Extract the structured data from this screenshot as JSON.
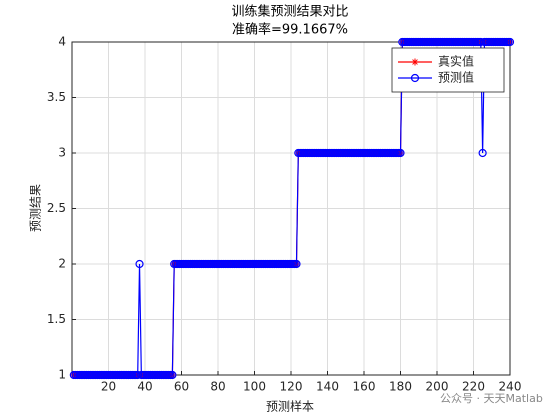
{
  "chart_data": {
    "type": "line",
    "title": "训练集预测结果对比",
    "subtitle": "准确率=99.1667%",
    "x_label": "预测样本",
    "y_label": "预测结果",
    "watermark": "公众号 · 天天Matlab",
    "xlim": [
      0,
      240
    ],
    "xticks": [
      20,
      40,
      60,
      80,
      100,
      120,
      140,
      160,
      180,
      200,
      220,
      240
    ],
    "ylim": [
      1,
      4
    ],
    "yticks": [
      1,
      1.5,
      2,
      2.5,
      3,
      3.5,
      4
    ],
    "grid": true,
    "legend": "northeast",
    "x": [
      1,
      2,
      3,
      4,
      5,
      6,
      7,
      8,
      9,
      10,
      11,
      12,
      13,
      14,
      15,
      16,
      17,
      18,
      19,
      20,
      21,
      22,
      23,
      24,
      25,
      26,
      27,
      28,
      29,
      30,
      31,
      32,
      33,
      34,
      35,
      36,
      37,
      38,
      39,
      40,
      41,
      42,
      43,
      44,
      45,
      46,
      47,
      48,
      49,
      50,
      51,
      52,
      53,
      54,
      55,
      56,
      57,
      58,
      59,
      60,
      61,
      62,
      63,
      64,
      65,
      66,
      67,
      68,
      69,
      70,
      71,
      72,
      73,
      74,
      75,
      76,
      77,
      78,
      79,
      80,
      81,
      82,
      83,
      84,
      85,
      86,
      87,
      88,
      89,
      90,
      91,
      92,
      93,
      94,
      95,
      96,
      97,
      98,
      99,
      100,
      101,
      102,
      103,
      104,
      105,
      106,
      107,
      108,
      109,
      110,
      111,
      112,
      113,
      114,
      115,
      116,
      117,
      118,
      119,
      120,
      121,
      122,
      123,
      124,
      125,
      126,
      127,
      128,
      129,
      130,
      131,
      132,
      133,
      134,
      135,
      136,
      137,
      138,
      139,
      140,
      141,
      142,
      143,
      144,
      145,
      146,
      147,
      148,
      149,
      150,
      151,
      152,
      153,
      154,
      155,
      156,
      157,
      158,
      159,
      160,
      161,
      162,
      163,
      164,
      165,
      166,
      167,
      168,
      169,
      170,
      171,
      172,
      173,
      174,
      175,
      176,
      177,
      178,
      179,
      180,
      181,
      182,
      183,
      184,
      185,
      186,
      187,
      188,
      189,
      190,
      191,
      192,
      193,
      194,
      195,
      196,
      197,
      198,
      199,
      200,
      201,
      202,
      203,
      204,
      205,
      206,
      207,
      208,
      209,
      210,
      211,
      212,
      213,
      214,
      215,
      216,
      217,
      218,
      219,
      220,
      221,
      222,
      223,
      224,
      225,
      226,
      227,
      228,
      229,
      230,
      231,
      232,
      233,
      234,
      235,
      236,
      237,
      238,
      239,
      240
    ],
    "series": [
      {
        "name": "真实值",
        "color": "#ff0000",
        "marker": "star",
        "values": [
          1,
          1,
          1,
          1,
          1,
          1,
          1,
          1,
          1,
          1,
          1,
          1,
          1,
          1,
          1,
          1,
          1,
          1,
          1,
          1,
          1,
          1,
          1,
          1,
          1,
          1,
          1,
          1,
          1,
          1,
          1,
          1,
          1,
          1,
          1,
          1,
          1,
          1,
          1,
          1,
          1,
          1,
          1,
          1,
          1,
          1,
          1,
          1,
          1,
          1,
          1,
          1,
          1,
          1,
          1,
          2,
          2,
          2,
          2,
          2,
          2,
          2,
          2,
          2,
          2,
          2,
          2,
          2,
          2,
          2,
          2,
          2,
          2,
          2,
          2,
          2,
          2,
          2,
          2,
          2,
          2,
          2,
          2,
          2,
          2,
          2,
          2,
          2,
          2,
          2,
          2,
          2,
          2,
          2,
          2,
          2,
          2,
          2,
          2,
          2,
          2,
          2,
          2,
          2,
          2,
          2,
          2,
          2,
          2,
          2,
          2,
          2,
          2,
          2,
          2,
          2,
          2,
          2,
          2,
          2,
          2,
          2,
          2,
          3,
          3,
          3,
          3,
          3,
          3,
          3,
          3,
          3,
          3,
          3,
          3,
          3,
          3,
          3,
          3,
          3,
          3,
          3,
          3,
          3,
          3,
          3,
          3,
          3,
          3,
          3,
          3,
          3,
          3,
          3,
          3,
          3,
          3,
          3,
          3,
          3,
          3,
          3,
          3,
          3,
          3,
          3,
          3,
          3,
          3,
          3,
          3,
          3,
          3,
          3,
          3,
          3,
          3,
          3,
          3,
          3,
          4,
          4,
          4,
          4,
          4,
          4,
          4,
          4,
          4,
          4,
          4,
          4,
          4,
          4,
          4,
          4,
          4,
          4,
          4,
          4,
          4,
          4,
          4,
          4,
          4,
          4,
          4,
          4,
          4,
          4,
          4,
          4,
          4,
          4,
          4,
          4,
          4,
          4,
          4,
          4,
          4,
          4,
          4,
          4,
          4,
          4,
          4,
          4,
          4,
          4,
          4,
          4,
          4,
          4,
          4,
          4,
          4,
          4,
          4,
          4
        ]
      },
      {
        "name": "预测值",
        "color": "#0000ff",
        "marker": "circle",
        "values": [
          1,
          1,
          1,
          1,
          1,
          1,
          1,
          1,
          1,
          1,
          1,
          1,
          1,
          1,
          1,
          1,
          1,
          1,
          1,
          1,
          1,
          1,
          1,
          1,
          1,
          1,
          1,
          1,
          1,
          1,
          1,
          1,
          1,
          1,
          1,
          1,
          2,
          1,
          1,
          1,
          1,
          1,
          1,
          1,
          1,
          1,
          1,
          1,
          1,
          1,
          1,
          1,
          1,
          1,
          1,
          2,
          2,
          2,
          2,
          2,
          2,
          2,
          2,
          2,
          2,
          2,
          2,
          2,
          2,
          2,
          2,
          2,
          2,
          2,
          2,
          2,
          2,
          2,
          2,
          2,
          2,
          2,
          2,
          2,
          2,
          2,
          2,
          2,
          2,
          2,
          2,
          2,
          2,
          2,
          2,
          2,
          2,
          2,
          2,
          2,
          2,
          2,
          2,
          2,
          2,
          2,
          2,
          2,
          2,
          2,
          2,
          2,
          2,
          2,
          2,
          2,
          2,
          2,
          2,
          2,
          2,
          2,
          2,
          3,
          3,
          3,
          3,
          3,
          3,
          3,
          3,
          3,
          3,
          3,
          3,
          3,
          3,
          3,
          3,
          3,
          3,
          3,
          3,
          3,
          3,
          3,
          3,
          3,
          3,
          3,
          3,
          3,
          3,
          3,
          3,
          3,
          3,
          3,
          3,
          3,
          3,
          3,
          3,
          3,
          3,
          3,
          3,
          3,
          3,
          3,
          3,
          3,
          3,
          3,
          3,
          3,
          3,
          3,
          3,
          3,
          4,
          4,
          4,
          4,
          4,
          4,
          4,
          4,
          4,
          4,
          4,
          4,
          4,
          4,
          4,
          4,
          4,
          4,
          4,
          4,
          4,
          4,
          4,
          4,
          4,
          4,
          4,
          4,
          4,
          4,
          4,
          4,
          4,
          4,
          4,
          4,
          4,
          4,
          4,
          4,
          4,
          4,
          4,
          4,
          3,
          4,
          4,
          4,
          4,
          4,
          4,
          4,
          4,
          4,
          4,
          4,
          4,
          4,
          4,
          4
        ]
      }
    ]
  }
}
